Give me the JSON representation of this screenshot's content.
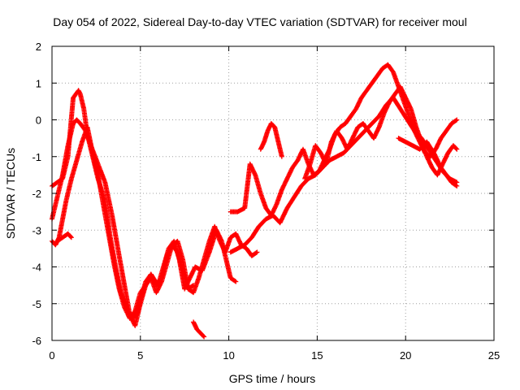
{
  "chart_data": {
    "type": "scatter",
    "title": "Day 054 of 2022, Sidereal Day-to-day VTEC variation (SDTVAR) for receiver moul",
    "xlabel": "GPS time / hours",
    "ylabel": "SDTVAR / TECUs",
    "xlim": [
      0,
      25
    ],
    "ylim": [
      -6,
      2
    ],
    "x_ticks": [
      0,
      5,
      10,
      15,
      20,
      25
    ],
    "y_ticks": [
      -6,
      -5,
      -4,
      -3,
      -2,
      -1,
      0,
      1,
      2
    ],
    "grid": true,
    "marker": "plus",
    "color": "#ff0000",
    "series": [
      {
        "x": [
          0.0,
          0.3,
          0.6,
          0.9,
          1.2,
          1.5,
          1.6,
          1.8,
          2.0,
          2.3,
          2.6,
          3.0,
          3.3,
          3.6,
          3.9,
          4.2,
          4.5,
          4.8,
          5.0,
          5.3,
          5.6,
          6.0,
          6.3,
          6.6,
          6.9,
          7.2,
          7.5,
          7.8,
          8.1,
          8.5,
          8.9,
          9.3,
          9.6,
          9.9,
          10.1,
          10.4
        ],
        "y": [
          -1.8,
          -1.7,
          -1.6,
          -1.0,
          0.6,
          0.8,
          0.7,
          0.3,
          -0.4,
          -1.0,
          -1.6,
          -2.2,
          -3.2,
          -4.0,
          -4.7,
          -5.1,
          -5.4,
          -5.3,
          -4.9,
          -4.4,
          -4.2,
          -4.5,
          -4.0,
          -3.5,
          -3.3,
          -3.8,
          -4.6,
          -4.3,
          -4.0,
          -4.1,
          -3.6,
          -3.0,
          -3.3,
          -3.9,
          -4.3,
          -4.4
        ]
      },
      {
        "x": [
          0.0,
          0.3,
          0.6,
          0.9,
          1.2,
          1.4,
          1.6,
          1.9,
          2.2,
          2.6,
          3.0,
          3.4,
          3.8,
          4.1,
          4.4,
          4.7,
          5.0,
          5.3,
          5.6,
          5.9,
          6.2,
          6.5,
          6.8,
          7.1,
          7.4,
          7.7,
          8.0,
          8.3,
          8.6,
          8.9,
          9.2,
          9.5,
          9.8,
          10.1,
          10.4,
          10.7,
          11.0,
          11.3,
          11.6
        ],
        "y": [
          -2.7,
          -2.1,
          -1.5,
          -0.7,
          -0.1,
          0.0,
          -0.1,
          -0.3,
          -0.7,
          -1.2,
          -1.7,
          -2.6,
          -3.7,
          -4.5,
          -5.3,
          -5.6,
          -5.0,
          -4.5,
          -4.3,
          -4.7,
          -4.4,
          -3.9,
          -3.4,
          -3.6,
          -4.1,
          -4.6,
          -4.7,
          -4.3,
          -3.8,
          -3.3,
          -2.9,
          -3.3,
          -3.6,
          -3.2,
          -3.1,
          -3.4,
          -3.5,
          -3.7,
          -3.6
        ]
      },
      {
        "x": [
          0.0,
          0.2,
          0.4,
          0.6,
          0.8,
          1.1,
          1.4,
          1.7,
          2.0,
          2.3,
          2.6,
          2.9,
          3.2,
          3.5,
          3.8,
          4.1,
          4.4,
          4.7,
          5.0,
          5.3,
          5.6,
          5.9,
          6.2,
          6.5,
          6.8,
          7.1,
          7.4,
          7.7,
          8.0
        ],
        "y": [
          -3.3,
          -3.4,
          -3.2,
          -2.7,
          -2.2,
          -1.6,
          -1.1,
          -0.6,
          -0.2,
          -0.9,
          -1.5,
          -2.3,
          -3.1,
          -3.9,
          -4.6,
          -5.1,
          -5.4,
          -5.2,
          -4.7,
          -4.5,
          -4.2,
          -4.5,
          -4.3,
          -3.7,
          -3.4,
          -3.3,
          -3.8,
          -4.6,
          -4.5
        ]
      },
      {
        "x": [
          0.3,
          0.6,
          0.9,
          1.1
        ],
        "y": [
          -3.3,
          -3.2,
          -3.1,
          -3.2
        ]
      },
      {
        "x": [
          8.0,
          8.2,
          8.4,
          8.6
        ],
        "y": [
          -5.5,
          -5.7,
          -5.8,
          -5.9
        ]
      },
      {
        "x": [
          10.1,
          10.5,
          10.9,
          11.2,
          11.5,
          11.8,
          12.1,
          12.4,
          12.7,
          13.0,
          13.3,
          13.6,
          13.9,
          14.2,
          14.5,
          14.8,
          15.1,
          15.4,
          15.7,
          16.0,
          16.3,
          16.6,
          16.9,
          17.2,
          17.5,
          17.8,
          18.1,
          18.4,
          18.7,
          19.0,
          19.3,
          19.6,
          19.9,
          20.2,
          20.5,
          20.8,
          21.1,
          21.4,
          21.7,
          22.0,
          22.3,
          22.6,
          22.9
        ],
        "y": [
          -2.5,
          -2.5,
          -2.4,
          -1.2,
          -1.5,
          -2.0,
          -2.4,
          -2.6,
          -2.3,
          -1.9,
          -1.6,
          -1.3,
          -1.1,
          -0.8,
          -1.2,
          -1.5,
          -1.4,
          -1.1,
          -0.8,
          -0.4,
          -0.2,
          -0.1,
          0.1,
          0.3,
          0.6,
          0.8,
          1.0,
          1.2,
          1.4,
          1.5,
          1.3,
          0.9,
          0.5,
          0.1,
          -0.3,
          -0.6,
          -0.9,
          -1.0,
          -0.8,
          -0.5,
          -0.3,
          -0.1,
          0.0
        ]
      },
      {
        "x": [
          10.1,
          10.5,
          10.9,
          11.3,
          11.7,
          12.1,
          12.5,
          12.9,
          13.3,
          13.7,
          14.1,
          14.5,
          14.9,
          15.3,
          15.7,
          16.1,
          16.5,
          16.9,
          17.3,
          17.7,
          18.1,
          18.5,
          18.9,
          19.3,
          19.7,
          20.1,
          20.5,
          20.9,
          21.3,
          21.7,
          22.1,
          22.5,
          22.9
        ],
        "y": [
          -3.6,
          -3.5,
          -3.4,
          -3.2,
          -2.9,
          -2.7,
          -2.6,
          -2.8,
          -2.4,
          -2.1,
          -1.8,
          -1.6,
          -1.5,
          -1.3,
          -1.1,
          -1.0,
          -0.9,
          -0.7,
          -0.5,
          -0.3,
          -0.1,
          0.1,
          0.4,
          0.6,
          0.3,
          0.0,
          -0.3,
          -0.5,
          -0.8,
          -1.1,
          -1.4,
          -1.6,
          -1.7
        ]
      },
      {
        "x": [
          11.8,
          12.0,
          12.2,
          12.4,
          12.6,
          12.8,
          13.0
        ],
        "y": [
          -0.8,
          -0.6,
          -0.3,
          -0.1,
          -0.2,
          -0.6,
          -1.0
        ]
      },
      {
        "x": [
          14.3,
          14.6,
          14.9,
          15.2,
          15.5,
          15.8,
          16.1,
          16.4,
          16.7,
          17.0,
          17.3,
          17.6,
          17.9,
          18.2,
          18.5,
          18.8,
          19.1,
          19.4,
          19.7,
          20.0,
          20.3,
          20.6,
          20.9,
          21.2,
          21.5,
          21.8,
          22.1,
          22.4,
          22.7,
          22.9
        ],
        "y": [
          -1.6,
          -1.2,
          -0.7,
          -0.9,
          -1.2,
          -0.6,
          -0.3,
          -0.5,
          -0.8,
          -0.5,
          -0.2,
          -0.1,
          -0.3,
          -0.5,
          -0.2,
          0.2,
          0.5,
          0.7,
          0.9,
          0.6,
          0.3,
          -0.2,
          -0.6,
          -1.0,
          -1.3,
          -1.5,
          -1.2,
          -0.9,
          -0.7,
          -0.8
        ]
      },
      {
        "x": [
          19.6,
          20.0,
          20.4,
          20.8,
          21.2,
          21.6,
          22.0,
          22.3,
          22.6,
          22.9
        ],
        "y": [
          -0.5,
          -0.6,
          -0.7,
          -0.8,
          -0.6,
          -0.9,
          -1.3,
          -1.5,
          -1.7,
          -1.8
        ]
      }
    ]
  }
}
